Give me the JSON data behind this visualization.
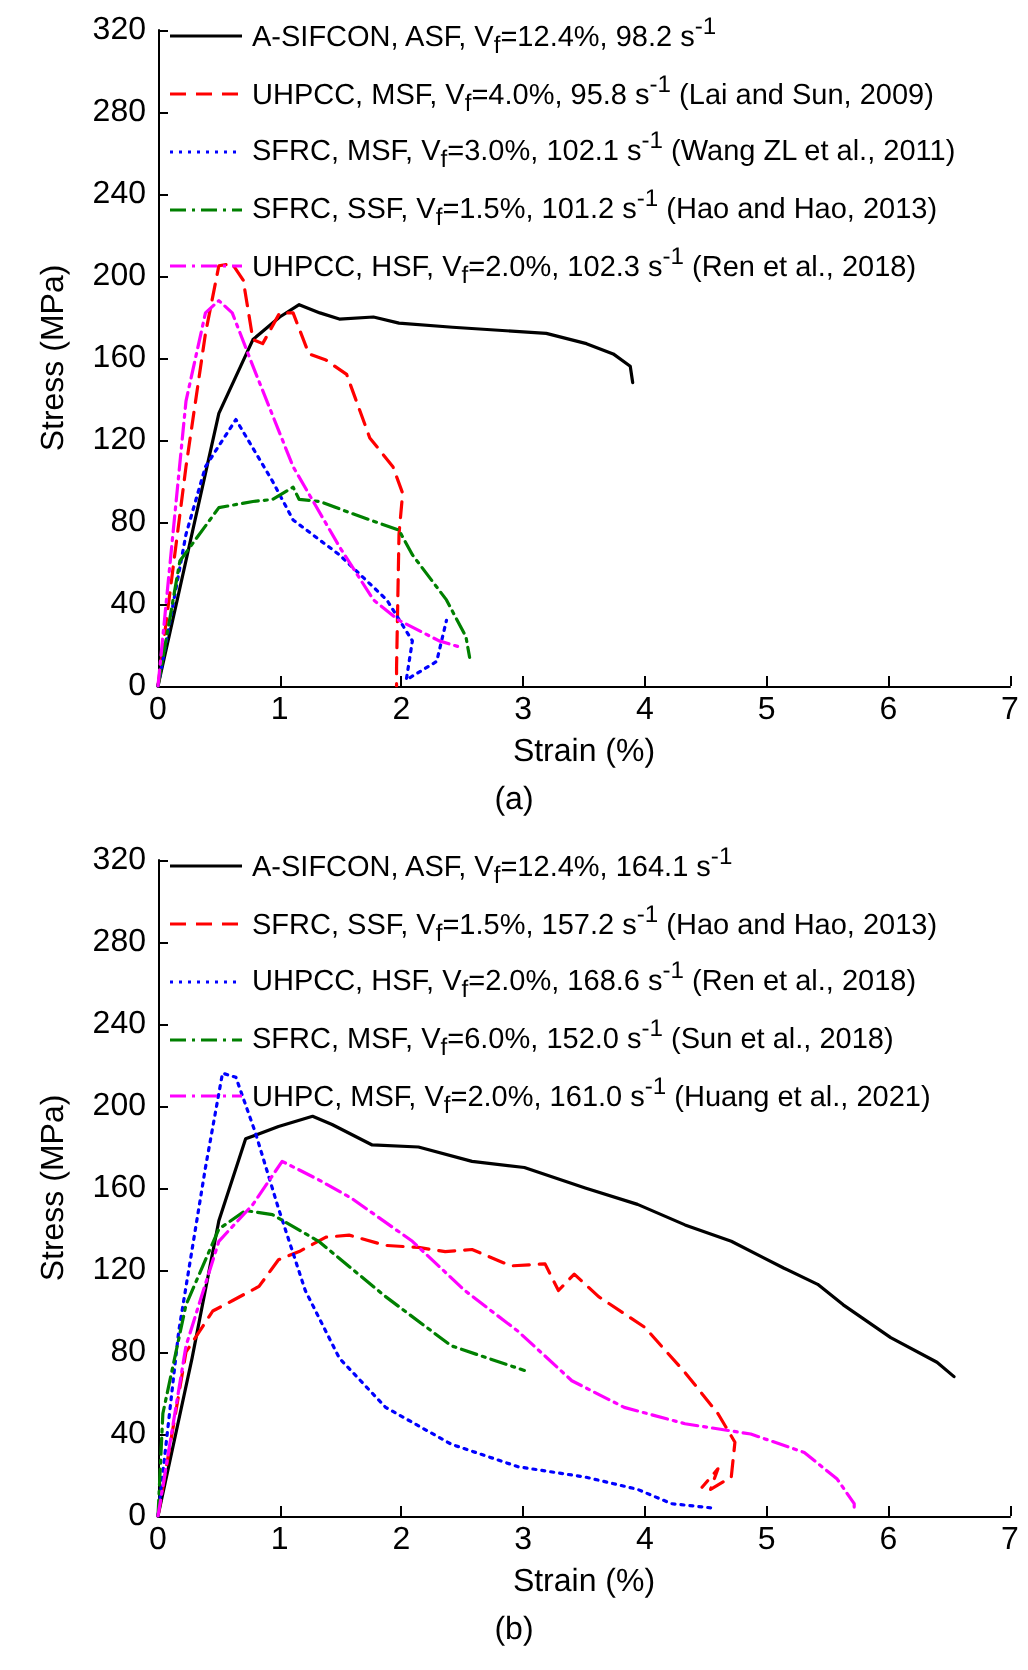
{
  "chart_data": [
    {
      "type": "line",
      "title": "(a)",
      "xlabel": "Strain (%)",
      "ylabel": "Stress (MPa)",
      "xlim": [
        0,
        7
      ],
      "xticks": [
        0,
        1,
        2,
        3,
        4,
        5,
        6,
        7
      ],
      "ylim": [
        0,
        320
      ],
      "yticks": [
        0,
        40,
        80,
        120,
        160,
        200,
        240,
        280,
        320
      ],
      "grid": false,
      "legend": "top left",
      "marker": "none",
      "series": [
        {
          "name": "A-SIFCON, ASF, V$_{f}$=12.4%, 98.2 s$^{-1}$",
          "color": "#000000",
          "line_style": "solid",
          "x": [
            0,
            0.5,
            0.78,
            1.0,
            1.16,
            1.33,
            1.49,
            1.77,
            1.98,
            2.42,
            3.19,
            3.52,
            3.74,
            3.88,
            3.9
          ],
          "values": [
            0,
            133,
            169,
            180,
            186,
            182,
            179,
            180,
            177,
            175,
            172,
            167,
            162,
            156,
            148
          ]
        },
        {
          "name": "UHPCC, MSF, V$_{f}$=4.0%, 95.8 s$^{-1}$ (Lai and Sun, 2009)",
          "color": "#ff0000",
          "line_style": "dashed",
          "x": [
            0,
            0.23,
            0.39,
            0.5,
            0.61,
            0.7,
            0.78,
            0.86,
            1.0,
            1.11,
            1.24,
            1.38,
            1.55,
            1.74,
            1.93,
            2.01,
            1.98,
            1.96,
            1.96
          ],
          "values": [
            0,
            107,
            172,
            205,
            206,
            198,
            169,
            167,
            182,
            182,
            162,
            159,
            152,
            121,
            107,
            94,
            74,
            9,
            0
          ]
        },
        {
          "name": "SFRC, MSF, V$_{f}$=3.0%, 102.1 s$^{-1}$ (Wang ZL et al., 2011)",
          "color": "#0000ff",
          "line_style": "dotted",
          "x": [
            0,
            0.23,
            0.39,
            0.64,
            0.94,
            1.11,
            1.49,
            1.88,
            2.09,
            2.04,
            2.29,
            2.37
          ],
          "values": [
            0,
            74,
            107,
            130,
            100,
            81,
            64,
            42,
            22,
            3,
            12,
            32
          ]
        },
        {
          "name": "SFRC, SSF, V$_{f}$=1.5%, 101.2 s$^{-1}$ (Hao and Hao, 2013)",
          "color": "#008000",
          "line_style": "dashdot",
          "x": [
            0,
            0.18,
            0.5,
            0.78,
            0.94,
            1.11,
            1.16,
            1.33,
            1.6,
            1.98,
            2.09,
            2.37,
            2.53,
            2.56
          ],
          "values": [
            0,
            61,
            87,
            90,
            91,
            97,
            91,
            90,
            84,
            76,
            64,
            42,
            24,
            14
          ]
        },
        {
          "name": "UHPCC, HSF, V$_{f}$=2.0%, 102.3 s$^{-1}$ (Ren et al., 2018)",
          "color": "#ff00ff",
          "line_style": "dashdot",
          "x": [
            0,
            0.23,
            0.39,
            0.5,
            0.61,
            0.78,
            1.11,
            1.49,
            1.77,
            1.98,
            2.31,
            2.48
          ],
          "values": [
            0,
            139,
            182,
            188,
            182,
            156,
            107,
            68,
            42,
            32,
            22,
            19
          ]
        }
      ]
    },
    {
      "type": "line",
      "title": "(b)",
      "xlabel": "Strain (%)",
      "ylabel": "Stress (MPa)",
      "xlim": [
        0,
        7
      ],
      "xticks": [
        0,
        1,
        2,
        3,
        4,
        5,
        6,
        7
      ],
      "ylim": [
        0,
        320
      ],
      "yticks": [
        0,
        40,
        80,
        120,
        160,
        200,
        240,
        280,
        320
      ],
      "grid": false,
      "legend": "top left",
      "marker": "none",
      "series": [
        {
          "name": "A-SIFCON, ASF, V$_{f}$=12.4%, 164.1 s$^{-1}$",
          "color": "#000000",
          "line_style": "solid",
          "x": [
            0,
            0.28,
            0.5,
            0.72,
            0.99,
            1.27,
            1.43,
            1.76,
            2.14,
            2.58,
            3.01,
            3.51,
            3.94,
            4.33,
            4.71,
            5.14,
            5.42,
            5.63,
            6.02,
            6.4,
            6.54
          ],
          "values": [
            0,
            77,
            144,
            184,
            190,
            195,
            191,
            181,
            180,
            173,
            170,
            160,
            152,
            142,
            134,
            121,
            113,
            103,
            87,
            75,
            68
          ]
        },
        {
          "name": "SFRC, SSF, V$_{f}$=1.5%, 157.2 s$^{-1}$ (Hao and Hao, 2013)",
          "color": "#ff0000",
          "line_style": "dashed",
          "x": [
            0,
            0.23,
            0.45,
            0.61,
            0.83,
            0.99,
            1.16,
            1.38,
            1.57,
            1.87,
            2.14,
            2.36,
            2.58,
            2.9,
            3.18,
            3.29,
            3.42,
            3.62,
            4.0,
            4.33,
            4.6,
            4.74,
            4.71,
            4.54,
            4.6,
            4.47
          ],
          "values": [
            0,
            80,
            100,
            105,
            112,
            125,
            129,
            136,
            137,
            132,
            131,
            129,
            130,
            122,
            123,
            110,
            118,
            107,
            92,
            70,
            50,
            36,
            19,
            13,
            23,
            14
          ]
        },
        {
          "name": "UHPCC, HSF, V$_{f}$=2.0%, 168.6 s$^{-1}$ (Ren et al., 2018)",
          "color": "#0000ff",
          "line_style": "dotted",
          "x": [
            0,
            0.17,
            0.39,
            0.53,
            0.64,
            0.8,
            0.99,
            1.21,
            1.49,
            1.87,
            2.41,
            2.96,
            3.51,
            3.94,
            4.22,
            4.54
          ],
          "values": [
            0,
            90,
            170,
            216,
            214,
            187,
            150,
            110,
            77,
            53,
            35,
            24,
            19,
            13,
            6,
            4
          ]
        },
        {
          "name": "SFRC, MSF, V$_{f}$=6.0%, 152.0 s$^{-1}$ (Sun et al., 2018)",
          "color": "#008000",
          "line_style": "dashdot",
          "x": [
            0,
            0.04,
            0.23,
            0.5,
            0.72,
            0.94,
            1.32,
            1.87,
            2.41,
            3.01
          ],
          "values": [
            0,
            50,
            103,
            140,
            149,
            147,
            134,
            107,
            83,
            71
          ]
        },
        {
          "name": "UHPC, MSF, V$_{f}$=2.0%, 161.0 s$^{-1}$ (Huang et al., 2021)",
          "color": "#ff00ff",
          "line_style": "dashdot",
          "x": [
            0,
            0.23,
            0.5,
            0.78,
            1.02,
            1.32,
            1.59,
            2.09,
            2.52,
            2.96,
            3.4,
            3.83,
            4.33,
            4.87,
            5.31,
            5.58,
            5.72,
            5.72
          ],
          "values": [
            0,
            83,
            134,
            152,
            173,
            164,
            155,
            134,
            110,
            90,
            66,
            53,
            45,
            40,
            31,
            18,
            6,
            3
          ]
        }
      ]
    }
  ]
}
